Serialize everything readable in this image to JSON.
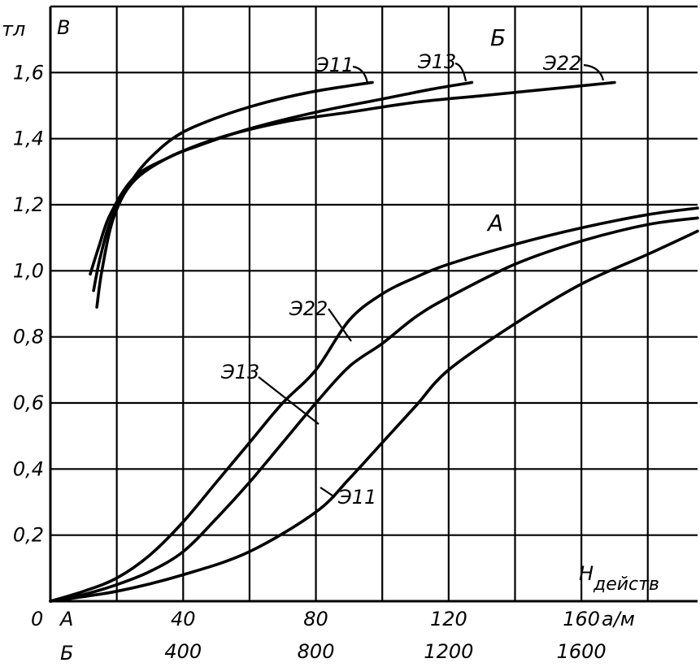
{
  "chart_data": {
    "type": "line",
    "y_axis": {
      "letter": "B",
      "unit": "тл",
      "range": [
        0,
        1.8
      ],
      "ticks": [
        "0,2",
        "0,4",
        "0,6",
        "0,8",
        "1,0",
        "1,2",
        "1,4",
        "1,6"
      ],
      "tick_values": [
        0.2,
        0.4,
        0.6,
        0.8,
        1.0,
        1.2,
        1.4,
        1.6
      ]
    },
    "x_axis": {
      "label_main": "H",
      "label_sub": "действ",
      "unit": "а/м",
      "origin_label": "0",
      "scale_a": {
        "name": "А",
        "range": [
          0,
          195
        ],
        "ticks": [
          "40",
          "80",
          "120",
          "160"
        ],
        "tick_values": [
          40,
          80,
          120,
          160
        ]
      },
      "scale_b": {
        "name": "Б",
        "range": [
          0,
          1950
        ],
        "ticks": [
          "400",
          "800",
          "1200",
          "1600"
        ],
        "tick_values": [
          400,
          800,
          1200,
          1600
        ]
      }
    },
    "grid": true,
    "groups": [
      {
        "name": "Б",
        "x_scale": "scale_b"
      },
      {
        "name": "А",
        "x_scale": "scale_a"
      }
    ],
    "series": [
      {
        "name": "Э11",
        "group": "Б",
        "points": [
          [
            140,
            0.89
          ],
          [
            155,
            1.0
          ],
          [
            190,
            1.16
          ],
          [
            250,
            1.28
          ],
          [
            320,
            1.36
          ],
          [
            400,
            1.42
          ],
          [
            520,
            1.47
          ],
          [
            650,
            1.51
          ],
          [
            780,
            1.54
          ],
          [
            900,
            1.56
          ],
          [
            970,
            1.57
          ]
        ]
      },
      {
        "name": "Э13",
        "group": "Б",
        "points": [
          [
            130,
            0.94
          ],
          [
            150,
            1.04
          ],
          [
            185,
            1.16
          ],
          [
            250,
            1.27
          ],
          [
            350,
            1.34
          ],
          [
            450,
            1.38
          ],
          [
            600,
            1.43
          ],
          [
            800,
            1.48
          ],
          [
            1000,
            1.52
          ],
          [
            1150,
            1.55
          ],
          [
            1270,
            1.57
          ]
        ]
      },
      {
        "name": "Э22",
        "group": "Б",
        "points": [
          [
            120,
            0.99
          ],
          [
            145,
            1.07
          ],
          [
            180,
            1.17
          ],
          [
            250,
            1.28
          ],
          [
            350,
            1.34
          ],
          [
            500,
            1.4
          ],
          [
            700,
            1.45
          ],
          [
            900,
            1.48
          ],
          [
            1100,
            1.51
          ],
          [
            1300,
            1.53
          ],
          [
            1500,
            1.55
          ],
          [
            1700,
            1.57
          ]
        ]
      },
      {
        "name": "Э22",
        "group": "А",
        "points": [
          [
            0,
            0
          ],
          [
            10,
            0.03
          ],
          [
            20,
            0.07
          ],
          [
            30,
            0.14
          ],
          [
            40,
            0.24
          ],
          [
            50,
            0.36
          ],
          [
            60,
            0.48
          ],
          [
            70,
            0.6
          ],
          [
            80,
            0.7
          ],
          [
            90,
            0.85
          ],
          [
            100,
            0.93
          ],
          [
            110,
            0.98
          ],
          [
            120,
            1.02
          ],
          [
            140,
            1.08
          ],
          [
            160,
            1.13
          ],
          [
            180,
            1.17
          ],
          [
            195,
            1.19
          ]
        ]
      },
      {
        "name": "Э13",
        "group": "А",
        "points": [
          [
            0,
            0
          ],
          [
            10,
            0.02
          ],
          [
            20,
            0.05
          ],
          [
            30,
            0.09
          ],
          [
            40,
            0.15
          ],
          [
            50,
            0.25
          ],
          [
            60,
            0.36
          ],
          [
            70,
            0.48
          ],
          [
            80,
            0.6
          ],
          [
            90,
            0.71
          ],
          [
            100,
            0.78
          ],
          [
            110,
            0.86
          ],
          [
            120,
            0.92
          ],
          [
            140,
            1.02
          ],
          [
            160,
            1.09
          ],
          [
            180,
            1.14
          ],
          [
            195,
            1.16
          ]
        ]
      },
      {
        "name": "Э11",
        "group": "А",
        "points": [
          [
            0,
            0
          ],
          [
            20,
            0.03
          ],
          [
            40,
            0.08
          ],
          [
            60,
            0.15
          ],
          [
            80,
            0.27
          ],
          [
            90,
            0.37
          ],
          [
            100,
            0.48
          ],
          [
            110,
            0.59
          ],
          [
            120,
            0.7
          ],
          [
            140,
            0.84
          ],
          [
            160,
            0.96
          ],
          [
            180,
            1.05
          ],
          [
            195,
            1.12
          ]
        ]
      }
    ]
  }
}
